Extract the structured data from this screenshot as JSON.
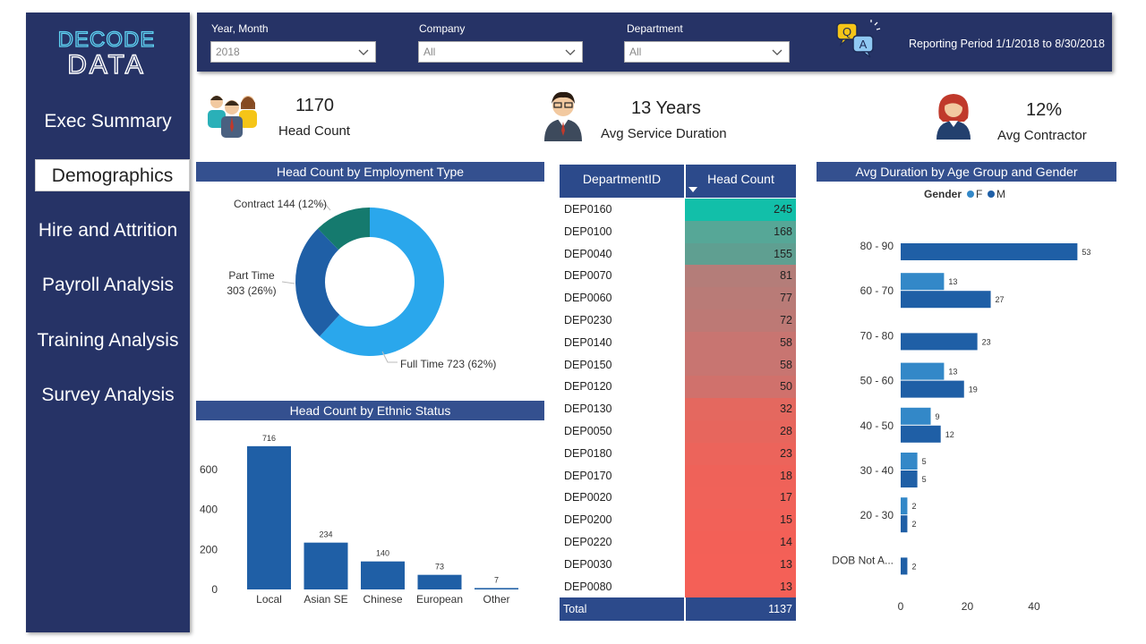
{
  "brand": {
    "line1": "DECODE",
    "line2": "DATA"
  },
  "nav": [
    {
      "label": "Exec Summary"
    },
    {
      "label": "Demographics"
    },
    {
      "label": "Hire and Attrition"
    },
    {
      "label": "Payroll Analysis"
    },
    {
      "label": "Training Analysis"
    },
    {
      "label": "Survey Analysis"
    }
  ],
  "filters": {
    "year": {
      "label": "Year, Month",
      "value": "2018"
    },
    "company": {
      "label": "Company",
      "value": "All"
    },
    "department": {
      "label": "Department",
      "value": "All"
    },
    "qa_icon": {
      "q": "Q",
      "a": "A"
    },
    "period": "Reporting Period 1/1/2018 to 8/30/2018"
  },
  "kpis": {
    "headcount": {
      "value": "1170",
      "label": "Head Count"
    },
    "service": {
      "value": "13 Years",
      "label": "Avg Service Duration"
    },
    "contractor": {
      "value": "12%",
      "label": "Avg Contractor"
    }
  },
  "colors": {
    "navy": "#263366",
    "title_bar": "#34508f",
    "bar": "#1f5fa6",
    "bar_light": "#3388c8",
    "donut_full": "#2aa7ec",
    "donut_part": "#1f5fa6",
    "donut_contract": "#157a6e"
  },
  "chart_data": [
    {
      "type": "pie",
      "title": "Head Count by Employment Type",
      "slices": [
        {
          "name": "Full Time",
          "value": 723,
          "label": "Full Time 723 (62%)"
        },
        {
          "name": "Part Time",
          "value": 303,
          "label_line1": "Part Time",
          "label_line2": "303 (26%)"
        },
        {
          "name": "Contract",
          "value": 144,
          "label": "Contract 144 (12%)"
        }
      ]
    },
    {
      "type": "bar",
      "title": "Head Count by Ethnic Status",
      "categories": [
        "Local",
        "Asian SE",
        "Chinese",
        "European",
        "Other"
      ],
      "values": [
        716,
        234,
        140,
        73,
        7
      ],
      "ylim": [
        0,
        760
      ],
      "yticks": [
        0,
        200,
        400,
        600
      ]
    },
    {
      "type": "bar",
      "orientation": "horizontal",
      "title": "Avg Duration by Age Group and Gender",
      "legend_title": "Gender",
      "legend": [
        "F",
        "M"
      ],
      "categories": [
        "80 - 90",
        "60 - 70",
        "70 - 80",
        "50 - 60",
        "40 - 50",
        "30 - 40",
        "20 - 30",
        "DOB Not A..."
      ],
      "series": [
        {
          "name": "F",
          "values": [
            null,
            13,
            null,
            13,
            9,
            5,
            2,
            null
          ]
        },
        {
          "name": "M",
          "values": [
            53,
            27,
            23,
            19,
            12,
            5,
            2,
            2
          ]
        }
      ],
      "xlim": [
        0,
        58
      ],
      "xticks": [
        0,
        20,
        40
      ]
    }
  ],
  "table": {
    "headers": [
      "DepartmentID",
      "Head Count"
    ],
    "rows": [
      {
        "id": "DEP0160",
        "count": 245,
        "color": "#12bfa9"
      },
      {
        "id": "DEP0100",
        "count": 168,
        "color": "#56a797"
      },
      {
        "id": "DEP0040",
        "count": 155,
        "color": "#5f9f91"
      },
      {
        "id": "DEP0070",
        "count": 81,
        "color": "#b47d79"
      },
      {
        "id": "DEP0060",
        "count": 77,
        "color": "#b97b77"
      },
      {
        "id": "DEP0230",
        "count": 72,
        "color": "#bd7975"
      },
      {
        "id": "DEP0140",
        "count": 58,
        "color": "#c87571"
      },
      {
        "id": "DEP0150",
        "count": 58,
        "color": "#c87571"
      },
      {
        "id": "DEP0120",
        "count": 50,
        "color": "#d0716c"
      },
      {
        "id": "DEP0130",
        "count": 32,
        "color": "#e4685f"
      },
      {
        "id": "DEP0050",
        "count": 28,
        "color": "#e7665d"
      },
      {
        "id": "DEP0180",
        "count": 23,
        "color": "#ec645b"
      },
      {
        "id": "DEP0170",
        "count": 18,
        "color": "#ef6259"
      },
      {
        "id": "DEP0020",
        "count": 17,
        "color": "#f06259"
      },
      {
        "id": "DEP0200",
        "count": 15,
        "color": "#f26158"
      },
      {
        "id": "DEP0220",
        "count": 14,
        "color": "#f36057"
      },
      {
        "id": "DEP0030",
        "count": 13,
        "color": "#f46057"
      },
      {
        "id": "DEP0080",
        "count": 13,
        "color": "#f46057"
      }
    ],
    "total_label": "Total",
    "total_value": "1137"
  }
}
